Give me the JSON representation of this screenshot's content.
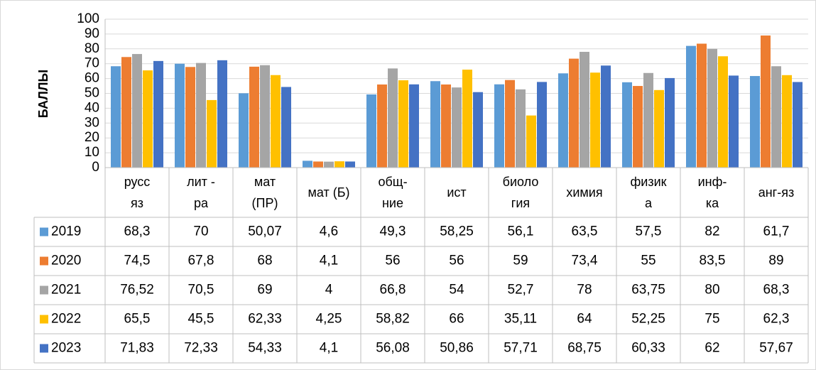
{
  "chart_data": {
    "type": "bar",
    "y_label": "БАЛЛЫ",
    "categories": [
      "русс\nяз",
      "лит -\nра",
      "мат\n(ПР)",
      "мат (Б)",
      "общ-\nние",
      "ист",
      "биоло\nгия",
      "химия",
      "физик\nа",
      "инф-\nка",
      "анг-яз"
    ],
    "series": [
      {
        "name": "2019",
        "color": "#5b9bd5",
        "values": [
          68.3,
          70,
          50.07,
          4.6,
          49.3,
          58.25,
          56.1,
          63.5,
          57.5,
          82,
          61.7
        ],
        "value_labels": [
          "68,3",
          "70",
          "50,07",
          "4,6",
          "49,3",
          "58,25",
          "56,1",
          "63,5",
          "57,5",
          "82",
          "61,7"
        ]
      },
      {
        "name": "2020",
        "color": "#ed7d31",
        "values": [
          74.5,
          67.8,
          68,
          4.1,
          56,
          56,
          59,
          73.4,
          55,
          83.5,
          89
        ],
        "value_labels": [
          "74,5",
          "67,8",
          "68",
          "4,1",
          "56",
          "56",
          "59",
          "73,4",
          "55",
          "83,5",
          "89"
        ]
      },
      {
        "name": "2021",
        "color": "#a5a5a5",
        "values": [
          76.52,
          70.5,
          69,
          4,
          66.8,
          54,
          52.7,
          78,
          63.75,
          80,
          68.3
        ],
        "value_labels": [
          "76,52",
          "70,5",
          "69",
          "4",
          "66,8",
          "54",
          "52,7",
          "78",
          "63,75",
          "80",
          "68,3"
        ]
      },
      {
        "name": "2022",
        "color": "#ffc000",
        "values": [
          65.5,
          45.5,
          62.33,
          4.25,
          58.82,
          66,
          35.11,
          64,
          52.25,
          75,
          62.3
        ],
        "value_labels": [
          "65,5",
          "45,5",
          "62,33",
          "4,25",
          "58,82",
          "66",
          "35,11",
          "64",
          "52,25",
          "75",
          "62,3"
        ]
      },
      {
        "name": "2023",
        "color": "#4472c4",
        "values": [
          71.83,
          72.33,
          54.33,
          4.1,
          56.08,
          50.86,
          57.71,
          68.75,
          60.33,
          62,
          57.67
        ],
        "value_labels": [
          "71,83",
          "72,33",
          "54,33",
          "4,1",
          "56,08",
          "50,86",
          "57,71",
          "68,75",
          "60,33",
          "62",
          "57,67"
        ]
      }
    ],
    "ylim": [
      0,
      100
    ],
    "yticks": [
      0,
      10,
      20,
      30,
      40,
      50,
      60,
      70,
      80,
      90,
      100
    ],
    "grid": true
  }
}
